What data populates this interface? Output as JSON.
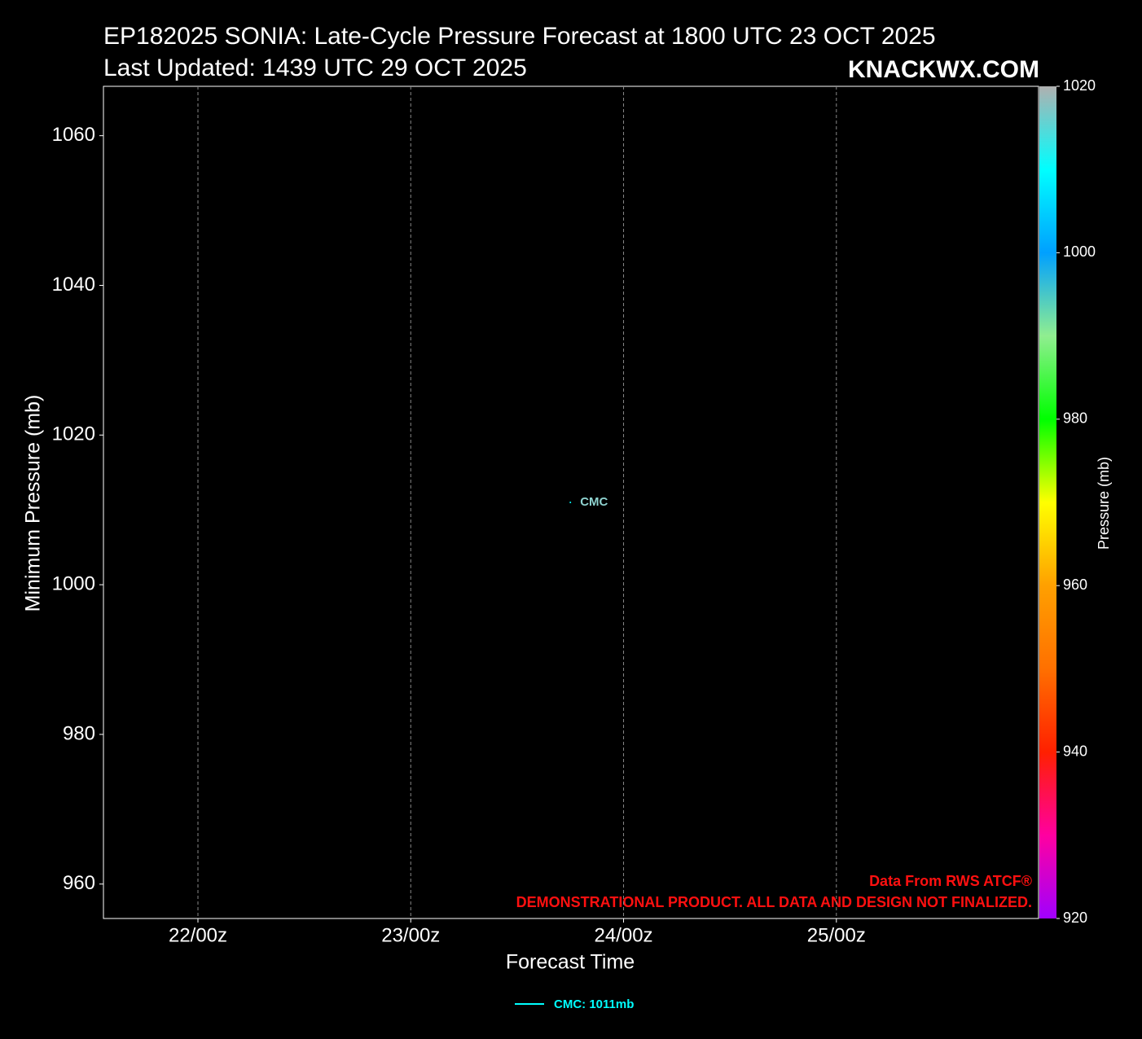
{
  "chart_data": {
    "type": "line",
    "title": "EP182025 SONIA: Late-Cycle Pressure Forecast at 1800 UTC 23 OCT 2025",
    "subtitle": "Last Updated: 1439 UTC 29 OCT 2025",
    "watermark": "KNACKWX.COM",
    "x_label": "Forecast Time",
    "y_label": "Minimum Pressure (mb)",
    "annotations": [
      "Data From RWS ATCF®",
      "DEMONSTRATIONAL PRODUCT. ALL DATA AND DESIGN NOT FINALIZED."
    ],
    "xlim": [
      21.556,
      25.95
    ],
    "xticks": [
      {
        "value": 22,
        "label": "22/00z"
      },
      {
        "value": 23,
        "label": "23/00z"
      },
      {
        "value": 24,
        "label": "24/00z"
      },
      {
        "value": 25,
        "label": "25/00z"
      }
    ],
    "ylim": [
      955.4,
      1066.6
    ],
    "yticks": [
      960,
      980,
      1000,
      1020,
      1040,
      1060
    ],
    "x_grid": true,
    "series": [
      {
        "name": "CMC",
        "legend_label": "CMC: 1011mb",
        "color": "#00ffff",
        "x": [
          23.75
        ],
        "values": [
          1011
        ]
      }
    ],
    "colorbar": {
      "label": "Pressure (mb)",
      "lim": [
        920,
        1020
      ],
      "ticks": [
        920,
        940,
        960,
        980,
        1000,
        1020
      ],
      "colors": [
        "#a000ff",
        "#ff00a0",
        "#ff2000",
        "#ff7000",
        "#ffa000",
        "#ffff00",
        "#00ff00",
        "#90ee90",
        "#00a0ff",
        "#00ffff",
        "#b0b0b0"
      ]
    }
  }
}
